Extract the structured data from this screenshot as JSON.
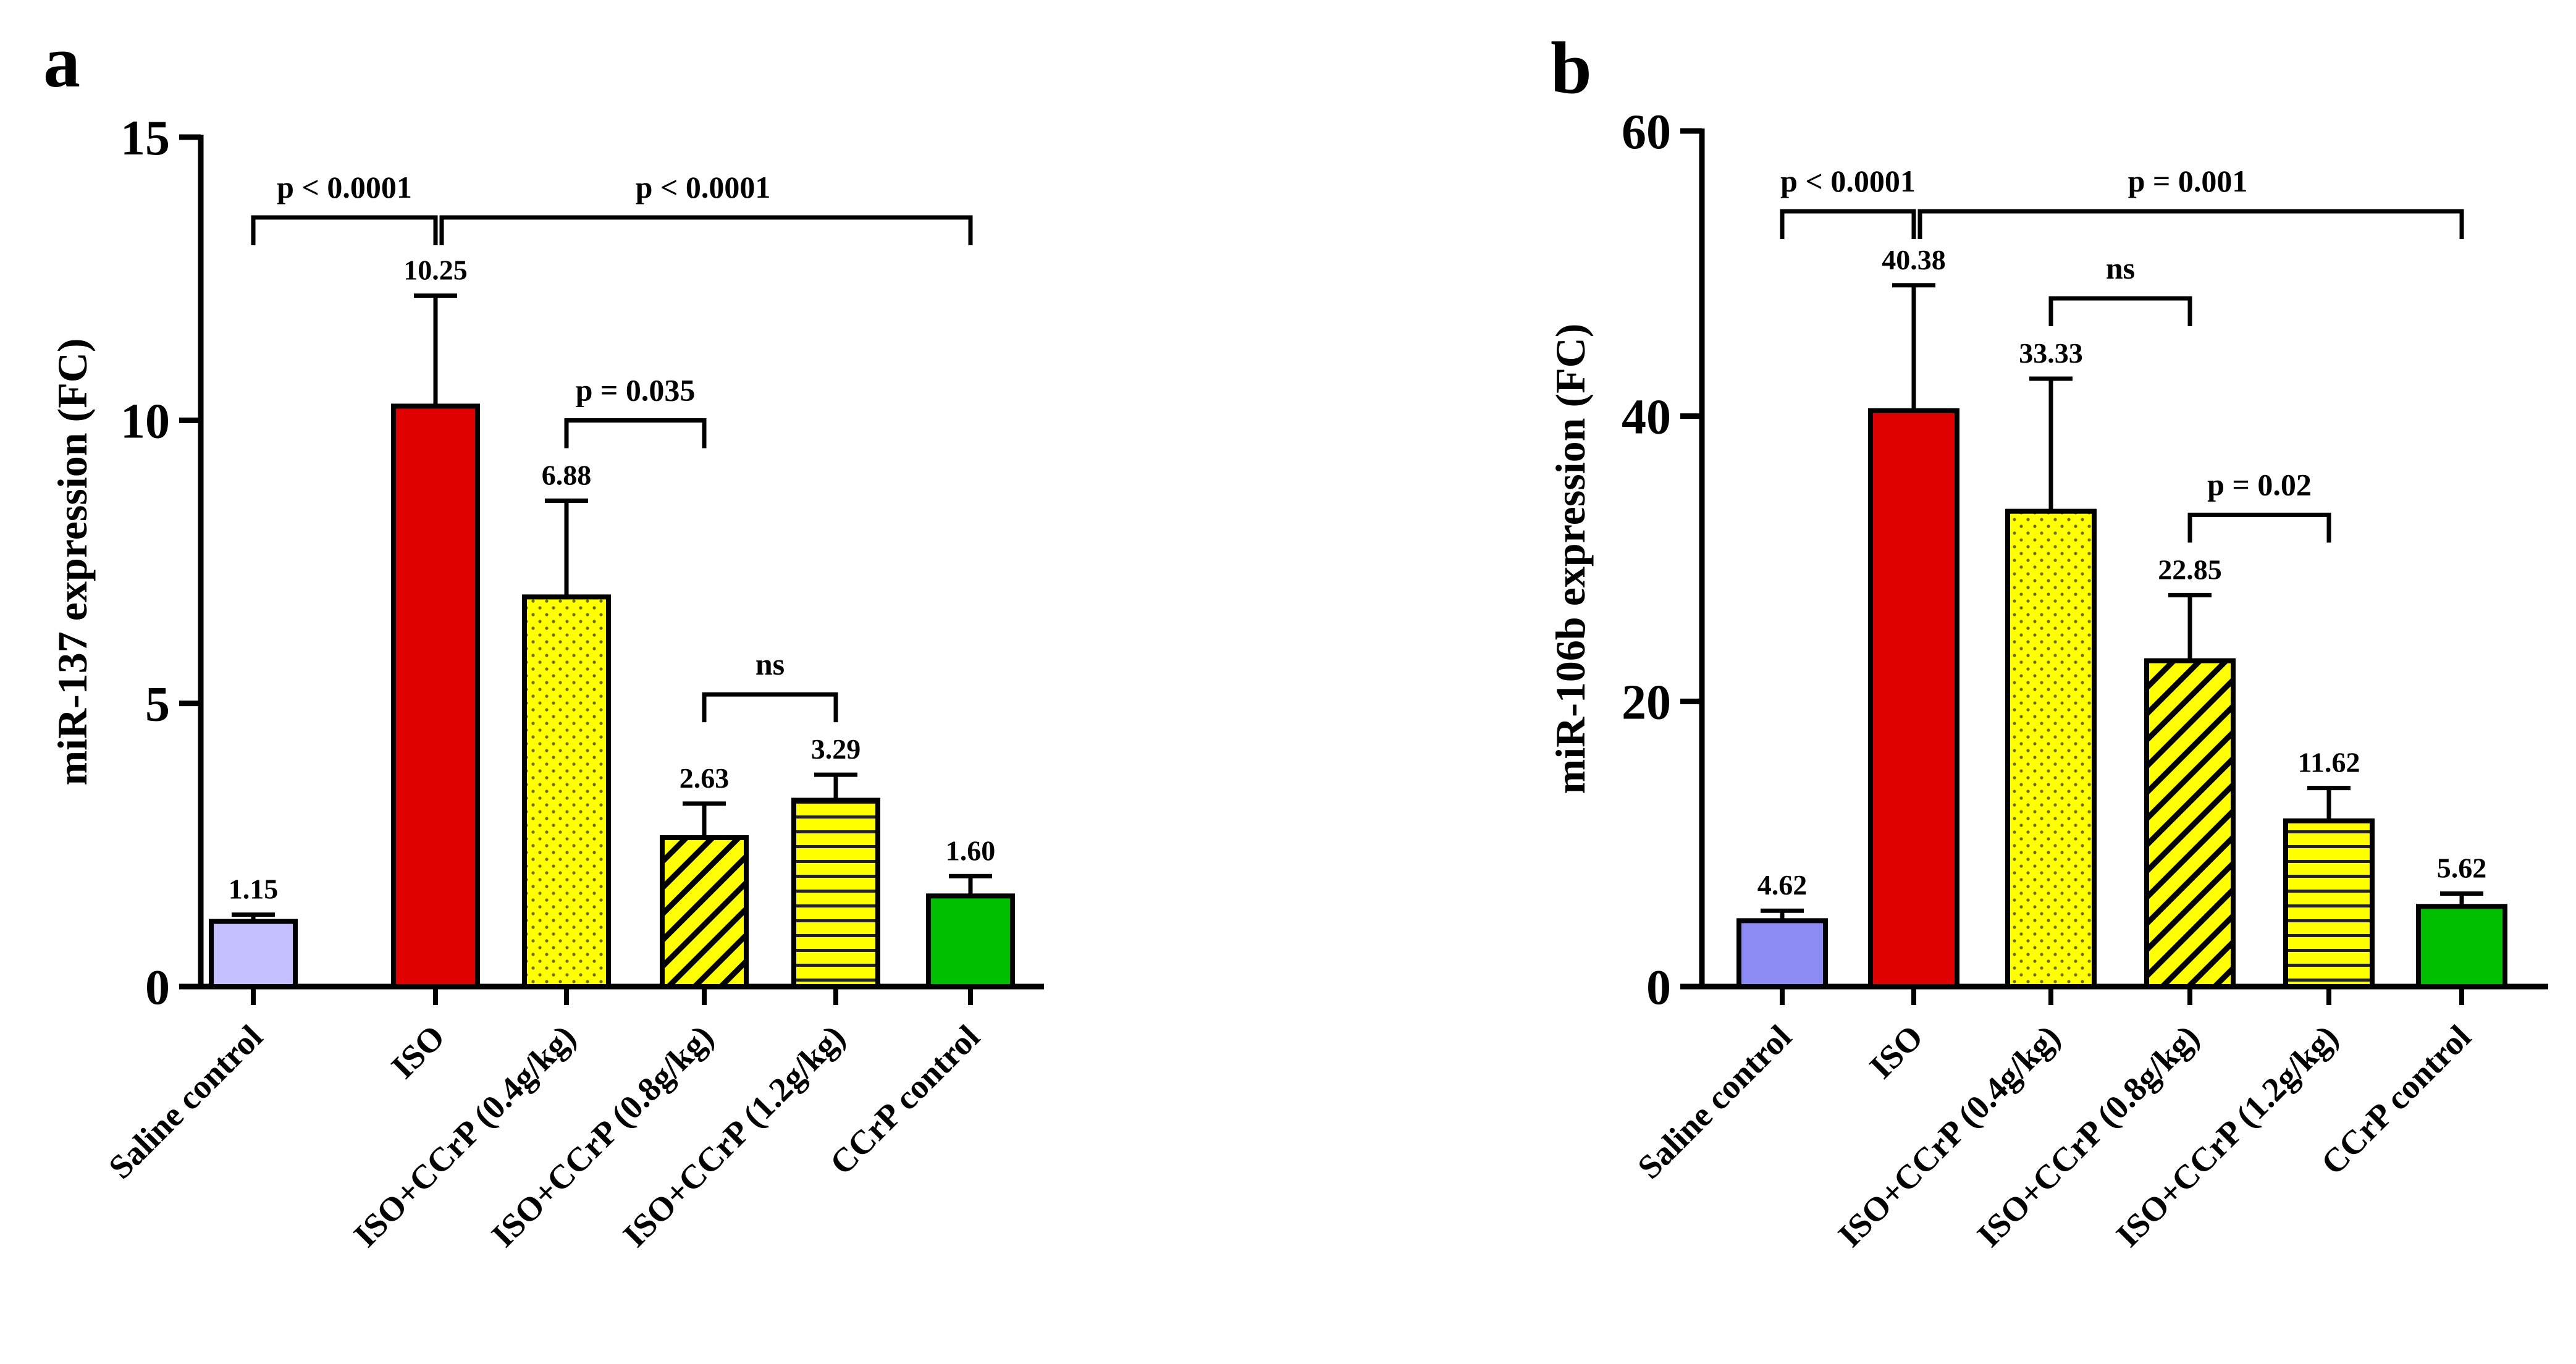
{
  "colors": {
    "saline": "#c4c0ff",
    "saline_b": "#8d8cf5",
    "iso": "#e10000",
    "yellow": "#ffff00",
    "green": "#00bf00",
    "axis": "#000000"
  },
  "chart_data": [
    {
      "type": "bar",
      "panel": "a",
      "title": "",
      "ylabel": "miR-137 expression (FC)",
      "xlabel": "",
      "ylim": [
        0,
        15
      ],
      "yticks": [
        "0",
        "5",
        "10",
        "15"
      ],
      "categories": [
        "Saline control",
        "ISO",
        "ISO+CCrP (0.4g/kg)",
        "ISO+CCrP (0.8g/kg)",
        "ISO+CCrP (1.2g/kg)",
        "CCrP control"
      ],
      "values": [
        1.15,
        10.25,
        6.88,
        2.63,
        3.29,
        1.6
      ],
      "errors": [
        0.12,
        1.95,
        1.7,
        0.6,
        0.45,
        0.35
      ],
      "value_labels": [
        "1.15",
        "10.25",
        "6.88",
        "2.63",
        "3.29",
        "1.60"
      ],
      "fills": [
        "solid-lavender",
        "solid-red",
        "dotted-yellow",
        "diagonal-yellow",
        "horizontal-yellow",
        "solid-green"
      ],
      "comparisons": [
        {
          "label": "p < 0.0001",
          "from": 0,
          "to": 1
        },
        {
          "label": "p < 0.0001",
          "from": 1,
          "to": 5
        },
        {
          "label": "p = 0.035",
          "from": 2,
          "to": 3
        },
        {
          "label": "ns",
          "from": 3,
          "to": 4
        }
      ]
    },
    {
      "type": "bar",
      "panel": "b",
      "title": "",
      "ylabel": "miR-106b expression (FC)",
      "xlabel": "",
      "ylim": [
        0,
        60
      ],
      "yticks": [
        "0",
        "20",
        "40",
        "60"
      ],
      "categories": [
        "Saline control",
        "ISO",
        "ISO+CCrP (0.4g/kg)",
        "ISO+CCrP (0.8g/kg)",
        "ISO+CCrP (1.2g/kg)",
        "CCrP control"
      ],
      "values": [
        4.62,
        40.38,
        33.33,
        22.85,
        11.62,
        5.62
      ],
      "errors": [
        0.7,
        8.8,
        9.3,
        4.6,
        2.3,
        0.9
      ],
      "value_labels": [
        "4.62",
        "40.38",
        "33.33",
        "22.85",
        "11.62",
        "5.62"
      ],
      "fills": [
        "solid-periwinkle",
        "solid-red",
        "dotted-yellow",
        "diagonal-yellow",
        "horizontal-yellow",
        "solid-green"
      ],
      "comparisons": [
        {
          "label": "p < 0.0001",
          "from": 0,
          "to": 1
        },
        {
          "label": "p = 0.001",
          "from": 1,
          "to": 5
        },
        {
          "label": "ns",
          "from": 2,
          "to": 3
        },
        {
          "label": "p = 0.02",
          "from": 3,
          "to": 4
        }
      ]
    }
  ]
}
